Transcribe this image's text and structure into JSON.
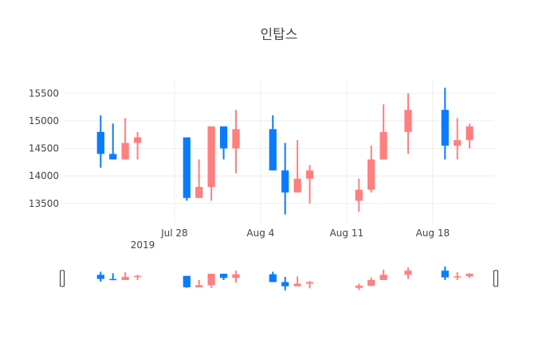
{
  "chart_data": {
    "type": "candlestick",
    "title": "인탑스",
    "xlabel": "",
    "ylabel": "",
    "xlim": [
      "2019-07-19",
      "2019-08-23"
    ],
    "ylim": [
      13150,
      15750
    ],
    "y_ticks": [
      13500,
      14000,
      14500,
      15000,
      15500
    ],
    "y_tick_labels": [
      "13500",
      "14000",
      "14500",
      "15000",
      "15500"
    ],
    "x_ticks": [
      "2019-07-28",
      "2019-08-04",
      "2019-08-11",
      "2019-08-18"
    ],
    "x_tick_labels": [
      "Jul 28",
      "Aug 4",
      "Aug 11",
      "Aug 18"
    ],
    "x_year_label": "2019",
    "grid": true,
    "legend": "none",
    "colors": {
      "increasing": "#ff7f7f",
      "decreasing": "#0a7bff",
      "grid": "#eeeeee",
      "text": "#444444"
    },
    "range_slider": true,
    "candles": [
      {
        "date": "2019-07-22",
        "open": 14800,
        "high": 15100,
        "low": 14150,
        "close": 14400
      },
      {
        "date": "2019-07-23",
        "open": 14400,
        "high": 14950,
        "low": 14300,
        "close": 14300
      },
      {
        "date": "2019-07-24",
        "open": 14300,
        "high": 15050,
        "low": 14300,
        "close": 14600
      },
      {
        "date": "2019-07-25",
        "open": 14600,
        "high": 14800,
        "low": 14300,
        "close": 14700
      },
      {
        "date": "2019-07-29",
        "open": 14700,
        "high": 14700,
        "low": 13550,
        "close": 13600
      },
      {
        "date": "2019-07-30",
        "open": 13600,
        "high": 14300,
        "low": 13600,
        "close": 13800
      },
      {
        "date": "2019-07-31",
        "open": 13800,
        "high": 14900,
        "low": 13550,
        "close": 14900
      },
      {
        "date": "2019-08-01",
        "open": 14900,
        "high": 14900,
        "low": 14300,
        "close": 14500
      },
      {
        "date": "2019-08-02",
        "open": 14500,
        "high": 15200,
        "low": 14050,
        "close": 14850
      },
      {
        "date": "2019-08-05",
        "open": 14850,
        "high": 15100,
        "low": 14100,
        "close": 14100
      },
      {
        "date": "2019-08-06",
        "open": 14100,
        "high": 14600,
        "low": 13300,
        "close": 13700
      },
      {
        "date": "2019-08-07",
        "open": 13700,
        "high": 14650,
        "low": 13700,
        "close": 13950
      },
      {
        "date": "2019-08-08",
        "open": 13950,
        "high": 14200,
        "low": 13500,
        "close": 14100
      },
      {
        "date": "2019-08-12",
        "open": 13550,
        "high": 13950,
        "low": 13350,
        "close": 13750
      },
      {
        "date": "2019-08-13",
        "open": 13750,
        "high": 14550,
        "low": 13700,
        "close": 14300
      },
      {
        "date": "2019-08-14",
        "open": 14300,
        "high": 15300,
        "low": 14300,
        "close": 14800
      },
      {
        "date": "2019-08-16",
        "open": 14800,
        "high": 15500,
        "low": 14400,
        "close": 15200
      },
      {
        "date": "2019-08-19",
        "open": 15200,
        "high": 15600,
        "low": 14300,
        "close": 14550
      },
      {
        "date": "2019-08-20",
        "open": 14550,
        "high": 15050,
        "low": 14300,
        "close": 14650
      },
      {
        "date": "2019-08-21",
        "open": 14650,
        "high": 14950,
        "low": 14500,
        "close": 14900
      }
    ]
  }
}
